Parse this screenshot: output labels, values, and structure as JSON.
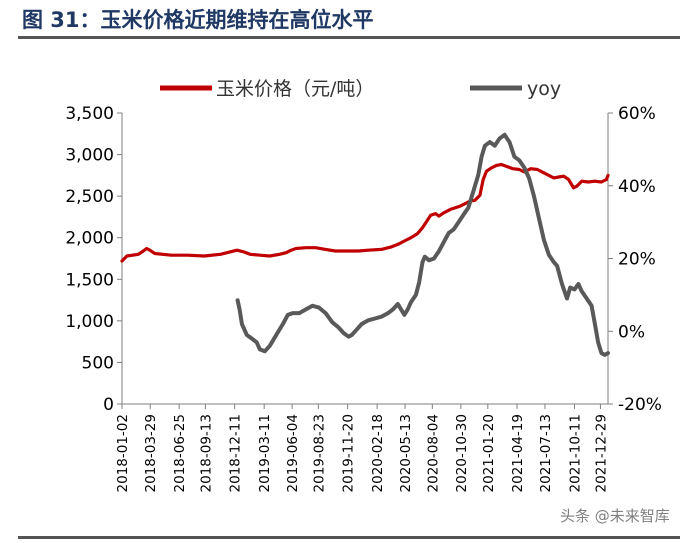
{
  "figure": {
    "title": "图 31：玉米价格近期维持在高位水平"
  },
  "watermark": "头条 @未来智库",
  "colors": {
    "price": "#c00000",
    "yoy": "#595959",
    "title": "#1f3864"
  },
  "chart_data": {
    "type": "line",
    "legend": [
      "玉米价格（元/吨）",
      "yoy"
    ],
    "left_axis": {
      "range": [
        0,
        3500
      ],
      "ticks": [
        "0",
        "500",
        "1,000",
        "1,500",
        "2,000",
        "2,500",
        "3,000",
        "3,500"
      ]
    },
    "right_axis": {
      "range": [
        -20,
        60
      ],
      "ticks": [
        "-20%",
        "0%",
        "20%",
        "40%",
        "60%"
      ]
    },
    "x_range": [
      0,
      1480
    ],
    "x_ticks": [
      {
        "label": "2018-01-02",
        "day": 0
      },
      {
        "label": "2018-03-29",
        "day": 86
      },
      {
        "label": "2018-06-25",
        "day": 174
      },
      {
        "label": "2018-09-13",
        "day": 254
      },
      {
        "label": "2018-12-11",
        "day": 343
      },
      {
        "label": "2019-03-11",
        "day": 433
      },
      {
        "label": "2019-06-04",
        "day": 518
      },
      {
        "label": "2019-08-23",
        "day": 598
      },
      {
        "label": "2019-11-20",
        "day": 687
      },
      {
        "label": "2020-02-18",
        "day": 777
      },
      {
        "label": "2020-05-13",
        "day": 862
      },
      {
        "label": "2020-08-04",
        "day": 945
      },
      {
        "label": "2020-10-30",
        "day": 1032
      },
      {
        "label": "2021-01-20",
        "day": 1114
      },
      {
        "label": "2021-04-19",
        "day": 1203
      },
      {
        "label": "2021-07-13",
        "day": 1288
      },
      {
        "label": "2021-10-11",
        "day": 1378
      },
      {
        "label": "2021-12-29",
        "day": 1457
      }
    ],
    "series": [
      {
        "name": "玉米价格（元/吨）",
        "axis": "left",
        "points": [
          [
            0,
            1720
          ],
          [
            15,
            1780
          ],
          [
            50,
            1800
          ],
          [
            65,
            1840
          ],
          [
            75,
            1870
          ],
          [
            85,
            1850
          ],
          [
            100,
            1810
          ],
          [
            150,
            1790
          ],
          [
            200,
            1790
          ],
          [
            250,
            1780
          ],
          [
            300,
            1800
          ],
          [
            330,
            1830
          ],
          [
            350,
            1850
          ],
          [
            370,
            1830
          ],
          [
            390,
            1800
          ],
          [
            420,
            1790
          ],
          [
            450,
            1780
          ],
          [
            480,
            1800
          ],
          [
            500,
            1820
          ],
          [
            515,
            1850
          ],
          [
            530,
            1870
          ],
          [
            560,
            1880
          ],
          [
            590,
            1880
          ],
          [
            620,
            1860
          ],
          [
            650,
            1840
          ],
          [
            680,
            1840
          ],
          [
            720,
            1840
          ],
          [
            750,
            1850
          ],
          [
            790,
            1860
          ],
          [
            820,
            1890
          ],
          [
            840,
            1920
          ],
          [
            860,
            1960
          ],
          [
            880,
            2000
          ],
          [
            900,
            2050
          ],
          [
            915,
            2120
          ],
          [
            930,
            2210
          ],
          [
            940,
            2270
          ],
          [
            955,
            2290
          ],
          [
            965,
            2260
          ],
          [
            980,
            2300
          ],
          [
            1000,
            2340
          ],
          [
            1030,
            2380
          ],
          [
            1050,
            2420
          ],
          [
            1060,
            2440
          ],
          [
            1075,
            2450
          ],
          [
            1090,
            2510
          ],
          [
            1100,
            2700
          ],
          [
            1110,
            2800
          ],
          [
            1125,
            2840
          ],
          [
            1140,
            2870
          ],
          [
            1155,
            2880
          ],
          [
            1170,
            2860
          ],
          [
            1190,
            2830
          ],
          [
            1210,
            2820
          ],
          [
            1225,
            2790
          ],
          [
            1245,
            2830
          ],
          [
            1265,
            2820
          ],
          [
            1285,
            2780
          ],
          [
            1300,
            2750
          ],
          [
            1315,
            2720
          ],
          [
            1330,
            2730
          ],
          [
            1345,
            2740
          ],
          [
            1360,
            2700
          ],
          [
            1375,
            2600
          ],
          [
            1385,
            2620
          ],
          [
            1400,
            2680
          ],
          [
            1420,
            2670
          ],
          [
            1440,
            2680
          ],
          [
            1460,
            2670
          ],
          [
            1475,
            2700
          ],
          [
            1480,
            2750
          ]
        ]
      },
      {
        "name": "yoy",
        "axis": "right",
        "points": [
          [
            352,
            8.5
          ],
          [
            358,
            6
          ],
          [
            365,
            2
          ],
          [
            380,
            -1
          ],
          [
            395,
            -2
          ],
          [
            410,
            -3
          ],
          [
            420,
            -5
          ],
          [
            435,
            -5.5
          ],
          [
            450,
            -4
          ],
          [
            470,
            -1
          ],
          [
            490,
            2
          ],
          [
            505,
            4.5
          ],
          [
            520,
            5
          ],
          [
            540,
            5
          ],
          [
            560,
            6
          ],
          [
            580,
            7
          ],
          [
            600,
            6.5
          ],
          [
            620,
            5
          ],
          [
            640,
            2.5
          ],
          [
            660,
            1
          ],
          [
            675,
            -0.5
          ],
          [
            690,
            -1.5
          ],
          [
            700,
            -1
          ],
          [
            715,
            0.5
          ],
          [
            730,
            2
          ],
          [
            750,
            3
          ],
          [
            770,
            3.5
          ],
          [
            790,
            4
          ],
          [
            810,
            5
          ],
          [
            825,
            6
          ],
          [
            840,
            7.5
          ],
          [
            850,
            6
          ],
          [
            860,
            4.5
          ],
          [
            870,
            6
          ],
          [
            880,
            8
          ],
          [
            895,
            10
          ],
          [
            905,
            13.5
          ],
          [
            915,
            19
          ],
          [
            922,
            20.5
          ],
          [
            935,
            19.5
          ],
          [
            950,
            20
          ],
          [
            965,
            22
          ],
          [
            980,
            24.5
          ],
          [
            995,
            27
          ],
          [
            1010,
            28
          ],
          [
            1025,
            30
          ],
          [
            1040,
            32
          ],
          [
            1055,
            34
          ],
          [
            1065,
            37
          ],
          [
            1075,
            40
          ],
          [
            1085,
            43
          ],
          [
            1095,
            48
          ],
          [
            1105,
            51
          ],
          [
            1120,
            52
          ],
          [
            1135,
            51
          ],
          [
            1150,
            53
          ],
          [
            1165,
            54
          ],
          [
            1180,
            52
          ],
          [
            1195,
            48
          ],
          [
            1210,
            47
          ],
          [
            1225,
            45
          ],
          [
            1240,
            42
          ],
          [
            1255,
            37
          ],
          [
            1270,
            31
          ],
          [
            1285,
            25
          ],
          [
            1300,
            21
          ],
          [
            1315,
            19
          ],
          [
            1325,
            18
          ],
          [
            1340,
            13
          ],
          [
            1355,
            9
          ],
          [
            1365,
            12
          ],
          [
            1378,
            11.5
          ],
          [
            1390,
            13
          ],
          [
            1400,
            11
          ],
          [
            1415,
            9
          ],
          [
            1430,
            7
          ],
          [
            1440,
            2
          ],
          [
            1450,
            -3
          ],
          [
            1460,
            -6
          ],
          [
            1470,
            -6.5
          ],
          [
            1480,
            -6
          ]
        ]
      }
    ]
  }
}
